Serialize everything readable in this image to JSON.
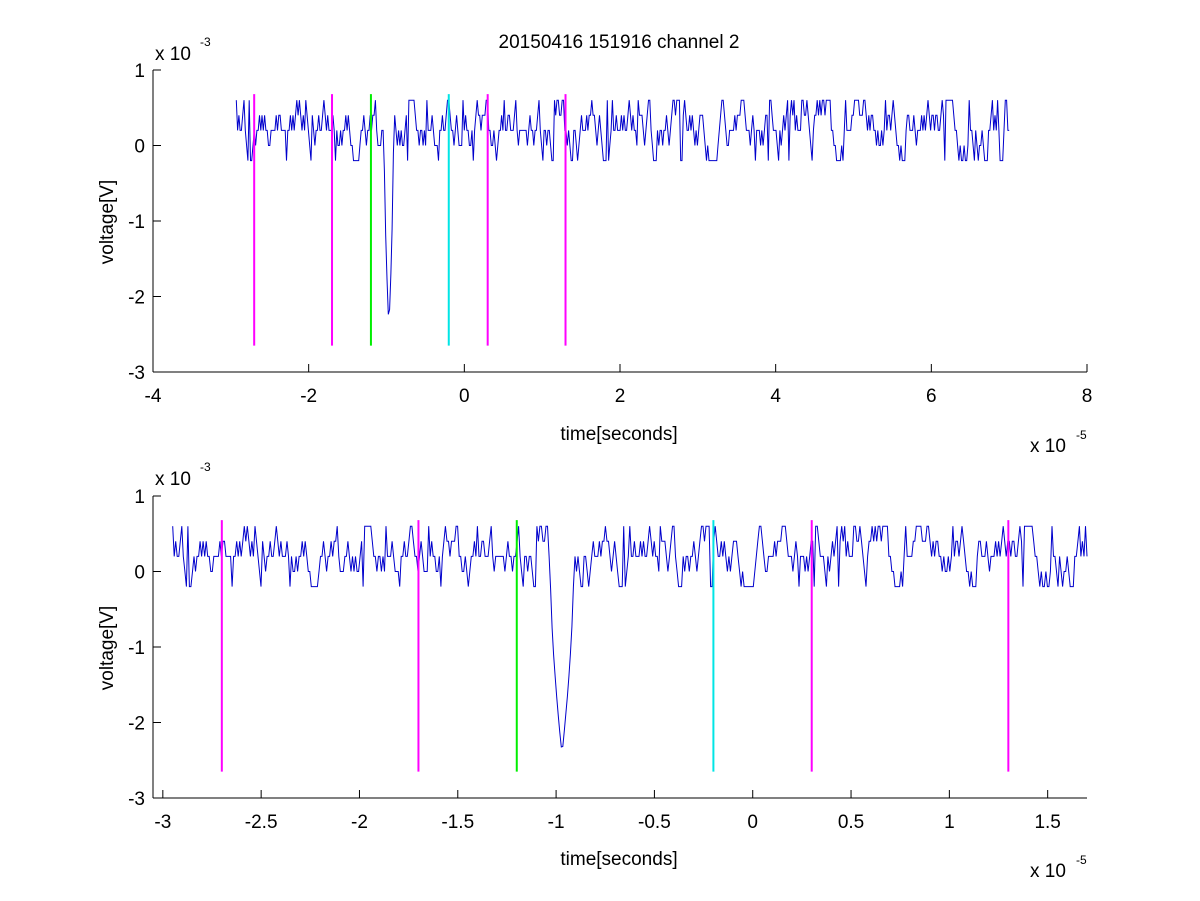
{
  "chart_data": [
    {
      "type": "line",
      "title": "20150416 151916 channel 2",
      "xlabel": "time[seconds]",
      "ylabel": "voltage[V]",
      "x_multiplier": "x 10",
      "x_exponent": "-5",
      "y_multiplier": "x 10",
      "y_exponent": "-3",
      "xlim": [
        -4,
        8
      ],
      "ylim": [
        -3,
        1
      ],
      "xticks": [
        -4,
        -2,
        0,
        2,
        4,
        6,
        8
      ],
      "xtick_labels": [
        "-4",
        "-2",
        "0",
        "2",
        "4",
        "6",
        "8"
      ],
      "yticks": [
        -3,
        -2,
        -1,
        0,
        1
      ],
      "ytick_labels": [
        "-3",
        "-2",
        "-1",
        "0",
        "1"
      ],
      "series": [
        {
          "color": "#0000cc",
          "x_range": [
            -2.93,
            7.0
          ],
          "baseline": 0.1,
          "levels": [
            -0.2,
            0,
            0.2,
            0.4,
            0.6
          ],
          "spike": {
            "x": -0.97,
            "min": -2.42
          }
        }
      ],
      "markers": [
        {
          "x": -2.7,
          "color": "#ff00ff",
          "ymin": -2.65,
          "ymax": 0.68
        },
        {
          "x": -1.7,
          "color": "#ff00ff",
          "ymin": -2.65,
          "ymax": 0.68
        },
        {
          "x": -1.2,
          "color": "#00ee00",
          "ymin": -2.65,
          "ymax": 0.68
        },
        {
          "x": -0.2,
          "color": "#00e5e5",
          "ymin": -2.65,
          "ymax": 0.68
        },
        {
          "x": 0.3,
          "color": "#ff00ff",
          "ymin": -2.65,
          "ymax": 0.68
        },
        {
          "x": 1.3,
          "color": "#ff00ff",
          "ymin": -2.65,
          "ymax": 0.68
        }
      ]
    },
    {
      "type": "line",
      "xlabel": "time[seconds]",
      "ylabel": "voltage[V]",
      "x_multiplier": "x 10",
      "x_exponent": "-5",
      "y_multiplier": "x 10",
      "y_exponent": "-3",
      "xlim": [
        -3.05,
        1.7
      ],
      "ylim": [
        -3,
        1
      ],
      "xticks": [
        -3,
        -2.5,
        -2,
        -1.5,
        -1,
        -0.5,
        0,
        0.5,
        1,
        1.5
      ],
      "xtick_labels": [
        "-3",
        "-2.5",
        "-2",
        "-1.5",
        "-1",
        "-0.5",
        "0",
        "0.5",
        "1",
        "1.5"
      ],
      "yticks": [
        -3,
        -2,
        -1,
        0,
        1
      ],
      "ytick_labels": [
        "-3",
        "-2",
        "-1",
        "0",
        "1"
      ],
      "series": [
        {
          "color": "#0000cc",
          "x_range": [
            -2.95,
            1.7
          ],
          "baseline": 0.1,
          "levels": [
            -0.2,
            0,
            0.2,
            0.4,
            0.6
          ],
          "spike": {
            "x": -0.97,
            "min": -2.42
          }
        }
      ],
      "markers": [
        {
          "x": -2.7,
          "color": "#ff00ff",
          "ymin": -2.65,
          "ymax": 0.68
        },
        {
          "x": -1.7,
          "color": "#ff00ff",
          "ymin": -2.65,
          "ymax": 0.68
        },
        {
          "x": -1.2,
          "color": "#00ee00",
          "ymin": -2.65,
          "ymax": 0.68
        },
        {
          "x": -0.2,
          "color": "#00e5e5",
          "ymin": -2.65,
          "ymax": 0.68
        },
        {
          "x": 0.3,
          "color": "#ff00ff",
          "ymin": -2.65,
          "ymax": 0.68
        },
        {
          "x": 1.3,
          "color": "#ff00ff",
          "ymin": -2.65,
          "ymax": 0.68
        }
      ]
    }
  ]
}
